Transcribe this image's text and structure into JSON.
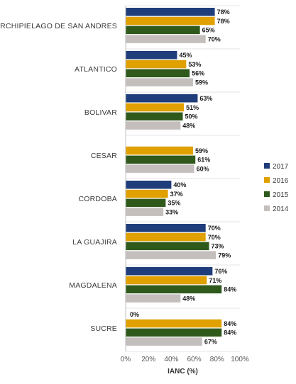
{
  "chart_data": {
    "type": "bar",
    "orientation": "horizontal",
    "categories": [
      "ARCHIPIELAGO DE SAN ANDRES",
      "ATLANTICO",
      "BOLIVAR",
      "CESAR",
      "CORDOBA",
      "LA GUAJIRA",
      "MAGDALENA",
      "SUCRE"
    ],
    "series": [
      {
        "name": "2017",
        "color": "#1f3d7a",
        "values": [
          78,
          45,
          63,
          null,
          40,
          70,
          76,
          0
        ],
        "labels": [
          "78%",
          "45%",
          "63%",
          "",
          "40%",
          "70%",
          "76%",
          "0%"
        ]
      },
      {
        "name": "2016",
        "color": "#e0a100",
        "values": [
          78,
          53,
          51,
          59,
          37,
          70,
          71,
          84
        ],
        "labels": [
          "78%",
          "53%",
          "51%",
          "59%",
          "37%",
          "70%",
          "71%",
          "84%"
        ]
      },
      {
        "name": "2015",
        "color": "#2f5a1c",
        "values": [
          65,
          56,
          50,
          61,
          35,
          73,
          84,
          84
        ],
        "labels": [
          "65%",
          "56%",
          "50%",
          "61%",
          "35%",
          "73%",
          "84%",
          "84%"
        ]
      },
      {
        "name": "2014",
        "color": "#c4bfbd",
        "values": [
          70,
          59,
          48,
          60,
          33,
          79,
          48,
          67
        ],
        "labels": [
          "70%",
          "59%",
          "48%",
          "60%",
          "33%",
          "79%",
          "48%",
          "67%"
        ]
      }
    ],
    "x_ticks": [
      "0%",
      "20%",
      "40%",
      "60%",
      "80%",
      "100%"
    ],
    "xlim": [
      0,
      100
    ],
    "xlabel": "IANC (%)",
    "ylabel": "",
    "title": "",
    "legend_position": "right",
    "legend_order": [
      "2017",
      "2016",
      "2015",
      "2014"
    ],
    "grid": false
  }
}
